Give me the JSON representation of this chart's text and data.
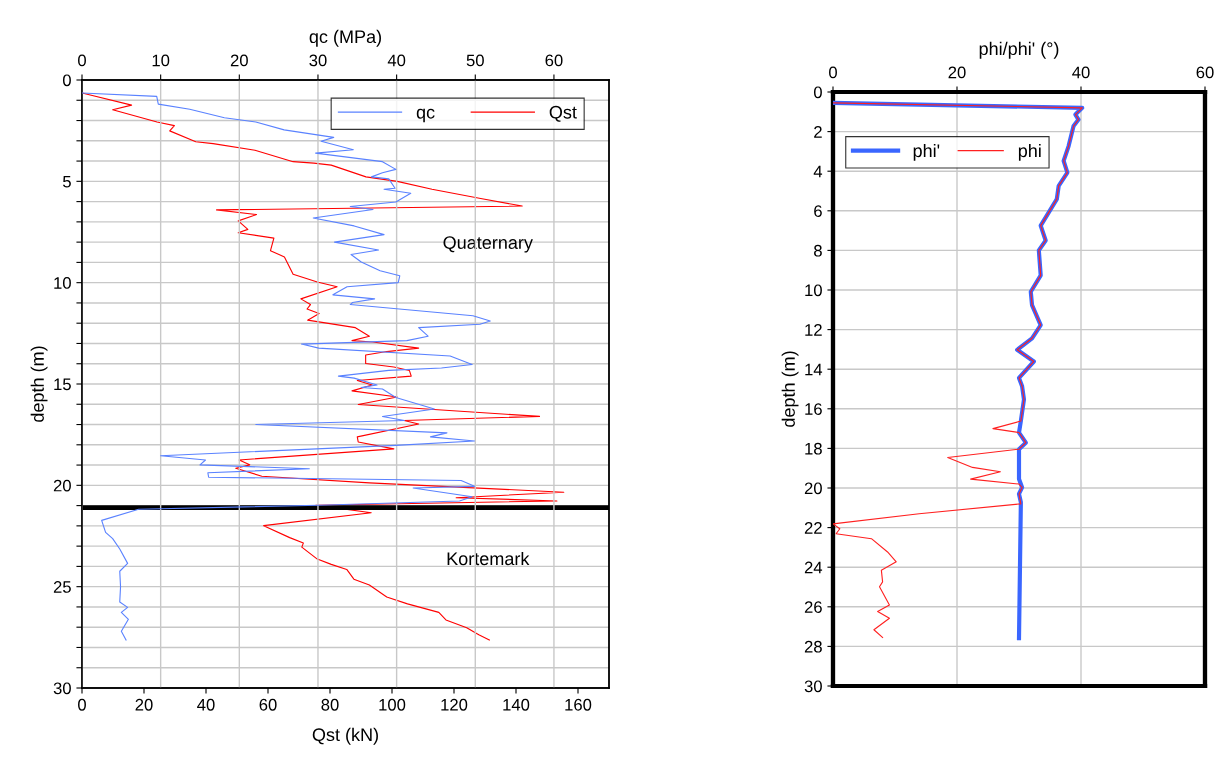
{
  "chart_data": [
    {
      "type": "line",
      "orientation": "horizontal",
      "xlabel": "Qst (kN)",
      "x2label": "qc (MPa)",
      "ylabel": "depth (m)",
      "xlim": [
        0,
        170
      ],
      "xticks": [
        0,
        20,
        40,
        60,
        80,
        100,
        120,
        140,
        160
      ],
      "x2lim": [
        0,
        67
      ],
      "x2ticks": [
        0,
        10,
        20,
        30,
        40,
        50,
        60
      ],
      "ylim": [
        30,
        0
      ],
      "yticks": [
        0,
        {
          "value": 1,
          "label": null
        },
        {
          "value": 2,
          "label": null
        },
        {
          "value": 3,
          "label": null
        },
        {
          "value": 4,
          "label": null
        },
        5,
        {
          "value": 6,
          "label": null
        },
        {
          "value": 7,
          "label": null
        },
        {
          "value": 8,
          "label": null
        },
        {
          "value": 9,
          "label": null
        },
        10,
        {
          "value": 11,
          "label": null
        },
        {
          "value": 12,
          "label": null
        },
        {
          "value": 13,
          "label": null
        },
        {
          "value": 14,
          "label": null
        },
        15,
        {
          "value": 16,
          "label": null
        },
        {
          "value": 17,
          "label": null
        },
        {
          "value": 18,
          "label": null
        },
        {
          "value": 19,
          "label": null
        },
        20,
        {
          "value": 21,
          "label": null
        },
        {
          "value": 22,
          "label": null
        },
        {
          "value": 23,
          "label": null
        },
        {
          "value": 24,
          "label": null
        },
        25,
        {
          "value": 26,
          "label": null
        },
        {
          "value": 27,
          "label": null
        },
        {
          "value": 28,
          "label": null
        },
        {
          "value": 29,
          "label": null
        },
        30
      ],
      "grid": true,
      "legend": "top right",
      "line_style": "solid",
      "marker": "none",
      "series": [
        {
          "name": "qc",
          "color": "#5a82ff",
          "axis": "x2",
          "x": [
            0.64,
            0.81,
            1.19,
            1.44,
            1.86,
            2.07,
            2.46,
            2.83,
            3.02,
            3.44,
            3.61,
            4.03,
            4.41,
            4.58,
            4.78,
            4.88,
            5.34,
            5.39,
            5.59,
            6.02,
            6.24,
            6.39,
            6.81,
            7.2,
            7.63,
            8.0,
            8.39,
            8.61,
            8.98,
            9.41,
            9.66,
            10.0,
            10.2,
            10.6,
            10.8,
            10.98,
            11.08,
            11.63,
            11.89,
            12.05,
            12.22,
            12.64,
            12.86,
            13.03,
            13.23,
            13.62,
            14.04,
            14.21,
            14.33,
            14.61,
            14.71,
            15.05,
            15.17,
            15.25,
            15.67,
            16.23,
            16.6,
            16.8,
            17.0,
            17.41,
            17.61,
            17.81,
            18.03,
            18.54,
            18.75,
            18.99,
            19.18,
            19.38,
            19.6,
            19.76,
            20.05,
            20.13,
            20.56,
            20.77,
            20.98,
            21.18,
            21.73,
            22.32,
            22.63,
            23.14,
            23.85,
            24.24,
            25.0,
            25.76,
            26.02,
            26.27,
            26.61,
            27.2,
            27.63
          ],
          "values": [
            0,
            9.5,
            9.7,
            13.7,
            18.1,
            22.1,
            25.7,
            32.0,
            30.4,
            34.5,
            29.7,
            38.2,
            39.9,
            38.2,
            36.8,
            39.0,
            39.8,
            38.4,
            41.8,
            39.9,
            34.1,
            37.0,
            29.4,
            34.6,
            38.4,
            32.1,
            37.7,
            34.2,
            35.5,
            37.9,
            40.4,
            40.2,
            33.7,
            31.9,
            37.2,
            34.4,
            34.1,
            49.7,
            51.9,
            50.6,
            42.8,
            44.0,
            41.3,
            27.9,
            30.1,
            46.8,
            49.6,
            45.7,
            39.0,
            32.6,
            34.6,
            37.5,
            35.5,
            38.2,
            39.9,
            44.8,
            38.2,
            41.0,
            22.1,
            46.4,
            44.3,
            49.9,
            39.9,
            10.0,
            15.7,
            15.0,
            28.9,
            16.0,
            16.1,
            48.2,
            49.9,
            42.1,
            49.6,
            48.0,
            30.1,
            7.2,
            2.5,
            3.0,
            3.9,
            4.8,
            5.8,
            4.8,
            4.9,
            4.8,
            5.8,
            5.0,
            5.9,
            5.0,
            5.6
          ]
        },
        {
          "name": "Qst",
          "color": "#ff0000",
          "x": [
            0.64,
            1.24,
            1.47,
            2.07,
            2.25,
            2.51,
            3.05,
            3.14,
            3.47,
            4.03,
            4.1,
            4.2,
            4.78,
            5.0,
            5.39,
            5.85,
            6.22,
            6.41,
            6.64,
            6.95,
            7.37,
            7.54,
            7.8,
            8.42,
            8.73,
            9.58,
            9.97,
            10.2,
            10.8,
            11.08,
            11.3,
            11.52,
            11.85,
            12.22,
            12.64,
            12.86,
            12.93,
            13.23,
            13.4,
            13.57,
            13.99,
            14.16,
            14.33,
            14.61,
            14.83,
            15.05,
            15.34,
            15.64,
            16.01,
            16.6,
            16.8,
            16.97,
            17.61,
            17.86,
            18.2,
            18.75,
            18.99,
            19.16,
            19.55,
            19.88,
            20.34,
            20.61,
            20.77,
            20.98,
            21.35,
            21.99,
            22.58,
            22.85,
            23.05,
            23.64,
            23.9,
            24.15,
            24.63,
            24.92,
            25.51,
            25.85,
            26.27,
            26.64,
            27.03,
            27.37,
            27.63
          ],
          "values": [
            0,
            16.0,
            9.9,
            24.2,
            29.8,
            28.3,
            36.7,
            42.3,
            55.8,
            68.1,
            74.8,
            80.4,
            91.6,
            101.7,
            112.9,
            128.6,
            142.0,
            43.4,
            56.3,
            50.4,
            53.5,
            50.4,
            61.9,
            60.8,
            65.3,
            68.1,
            75.9,
            82.3,
            70.6,
            73.7,
            72.6,
            76.5,
            72.8,
            88.2,
            92.7,
            87.1,
            93.8,
            108.6,
            98.3,
            91.5,
            91.5,
            100.6,
            105.6,
            106.2,
            88.8,
            93.6,
            87.1,
            101.7,
            89.1,
            147.6,
            103.9,
            108.6,
            88.8,
            89.1,
            100.6,
            50.7,
            54.1,
            49.6,
            58.0,
            92.7,
            155.4,
            120.7,
            153.2,
            75.4,
            93.3,
            58.6,
            67.0,
            71.4,
            70.9,
            75.9,
            80.4,
            85.4,
            87.7,
            92.7,
            98.3,
            105.0,
            115.1,
            117.4,
            124.1,
            128.0,
            131.4
          ]
        }
      ],
      "ref_lines": [
        {
          "axis": "y",
          "value": 21.1,
          "color": "#000000"
        }
      ],
      "annotations": [
        "Quaternary",
        "Kortemark"
      ]
    },
    {
      "type": "line",
      "orientation": "horizontal",
      "x2label": "phi/phi' (°)",
      "ylabel": "depth (m)",
      "x2lim": [
        0,
        60
      ],
      "x2ticks": [
        0,
        20,
        40,
        60
      ],
      "ylim": [
        30,
        0
      ],
      "yticks": [
        0,
        2,
        4,
        6,
        8,
        10,
        12,
        14,
        16,
        18,
        20,
        22,
        24,
        26,
        28,
        30
      ],
      "grid": true,
      "legend": "top left",
      "line_style": "solid",
      "marker": "none",
      "series": [
        {
          "name": "phi'",
          "color": "#3a66ff",
          "axis": "x2",
          "x": [
            0.55,
            0.8,
            1.14,
            1.39,
            1.72,
            2.73,
            3.48,
            4.07,
            4.74,
            5.41,
            6.08,
            6.75,
            7.5,
            8.0,
            9.26,
            10.09,
            10.76,
            11.77,
            12.44,
            13.02,
            13.61,
            14.44,
            14.86,
            15.53,
            16.62,
            17.2,
            17.71,
            18.04,
            19.55,
            19.97,
            20.3,
            20.72,
            27.58
          ],
          "values": [
            0,
            40.2,
            39.1,
            39.6,
            38.8,
            38.0,
            37.2,
            37.8,
            36.4,
            36.1,
            34.8,
            33.5,
            34.3,
            33.2,
            33.5,
            31.9,
            32.1,
            33.5,
            32.1,
            29.7,
            32.4,
            30.0,
            30.5,
            30.8,
            30.3,
            30.0,
            31.1,
            30.0,
            30.0,
            30.5,
            30.0,
            30.3,
            30.0
          ]
        },
        {
          "name": "phi",
          "color": "#ff2020",
          "axis": "x2",
          "x": [
            0.55,
            0.8,
            1.14,
            1.39,
            1.72,
            2.73,
            3.48,
            4.07,
            4.74,
            5.41,
            6.08,
            6.75,
            7.5,
            8.0,
            9.26,
            10.09,
            10.76,
            11.77,
            12.44,
            13.02,
            13.61,
            14.44,
            14.86,
            15.53,
            16.62,
            17.0,
            17.2,
            17.71,
            18.04,
            18.46,
            18.96,
            19.18,
            19.55,
            19.8,
            19.97,
            20.3,
            20.8,
            21.3,
            21.81,
            22.06,
            22.31,
            22.56,
            23.23,
            23.73,
            24.15,
            24.74,
            24.99,
            25.91,
            26.24,
            26.58,
            27.16,
            27.55
          ],
          "values": [
            0,
            40.2,
            39.1,
            39.6,
            38.8,
            38.0,
            37.2,
            37.8,
            36.4,
            36.1,
            34.8,
            33.5,
            34.3,
            33.2,
            33.5,
            31.9,
            32.1,
            33.5,
            32.1,
            29.7,
            32.4,
            30.0,
            30.5,
            30.8,
            30.3,
            25.8,
            30.0,
            31.1,
            30.0,
            18.5,
            22.5,
            27.0,
            22.2,
            30.0,
            30.5,
            30.0,
            30.3,
            13.9,
            0,
            1.1,
            0.5,
            6.2,
            8.8,
            10.2,
            7.8,
            8.0,
            7.5,
            9.1,
            7.2,
            9.1,
            6.6,
            8.0
          ]
        }
      ]
    }
  ]
}
